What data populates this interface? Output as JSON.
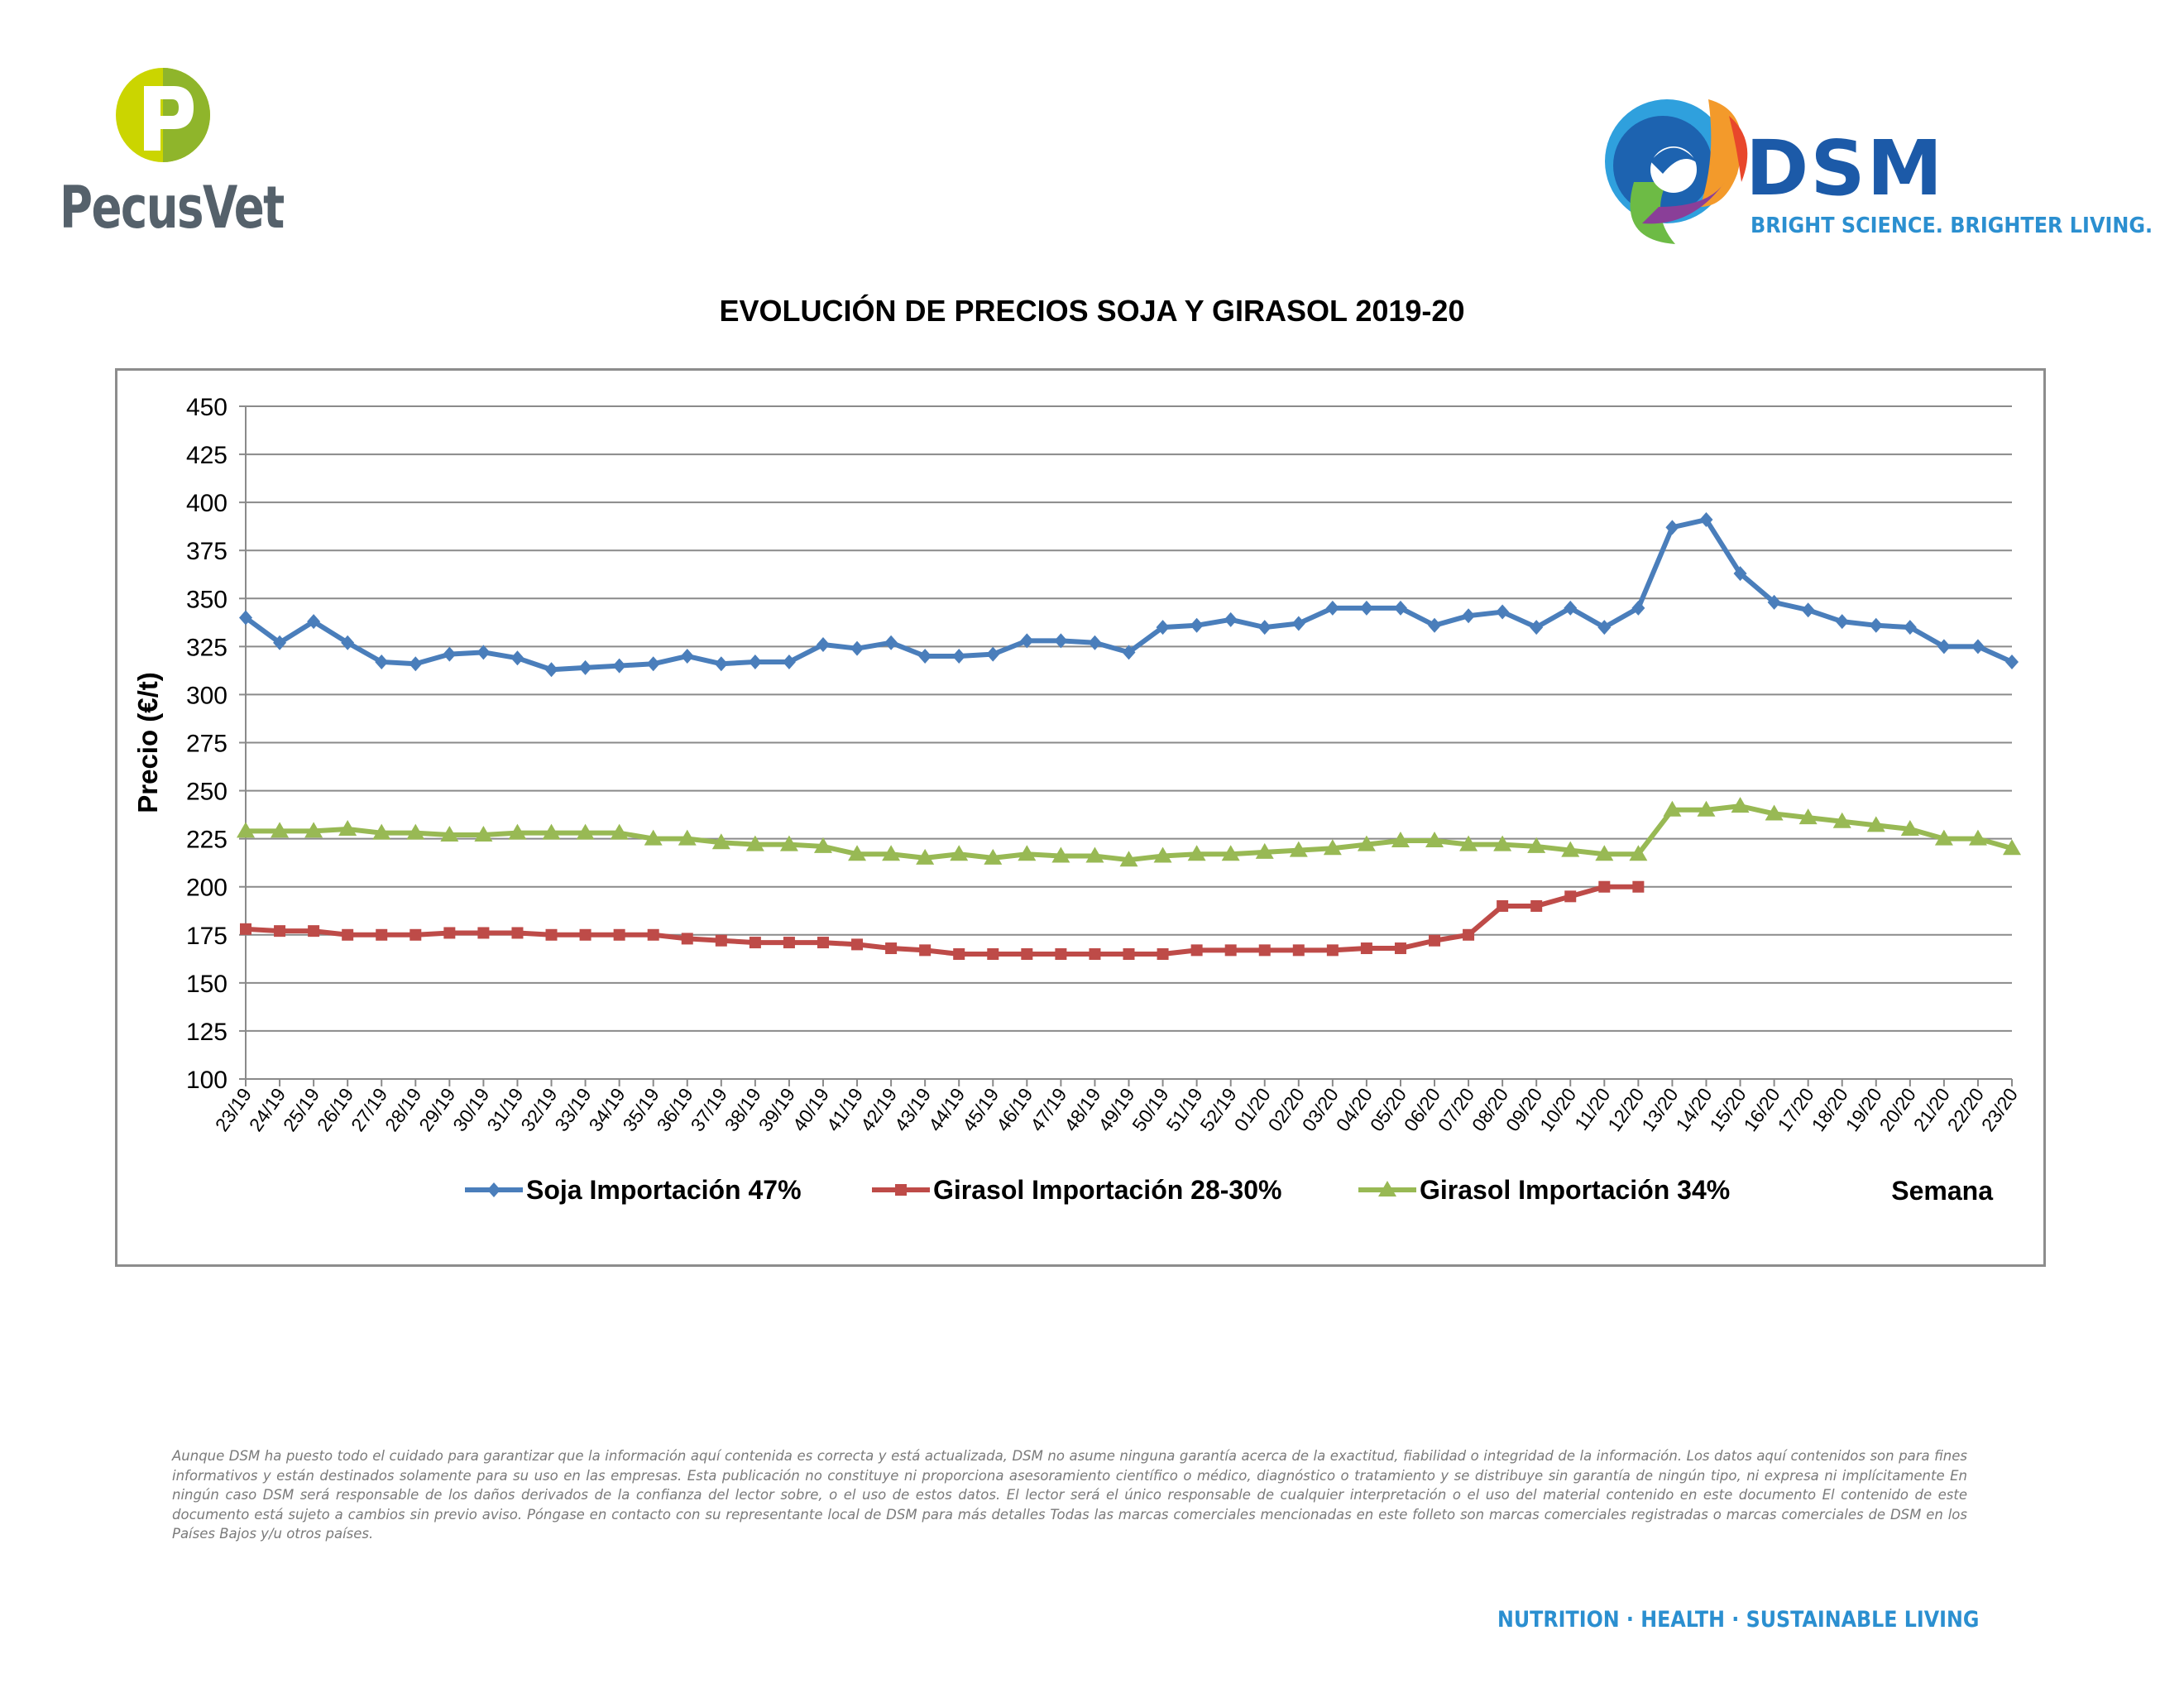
{
  "brand_left": {
    "name": "PecusVet",
    "color": "#55616b",
    "accent": "#b8cc1e"
  },
  "brand_right": {
    "name": "DSM",
    "tagline": "BRIGHT SCIENCE. BRIGHTER LIVING.",
    "color": "#1c5aa8",
    "tagline_color": "#2b8fd0"
  },
  "chart_data": {
    "type": "line",
    "title": "EVOLUCIÓN DE PRECIOS SOJA Y GIRASOL 2019-20",
    "xlabel": "Semana",
    "ylabel": "Precio (€/t)",
    "ylim": [
      100,
      450
    ],
    "yticks": [
      100,
      125,
      150,
      175,
      200,
      225,
      250,
      275,
      300,
      325,
      350,
      375,
      400,
      425,
      450
    ],
    "grid": true,
    "legend_position": "bottom",
    "categories": [
      "23/19",
      "24/19",
      "25/19",
      "26/19",
      "27/19",
      "28/19",
      "29/19",
      "30/19",
      "31/19",
      "32/19",
      "33/19",
      "34/19",
      "35/19",
      "36/19",
      "37/19",
      "38/19",
      "39/19",
      "40/19",
      "41/19",
      "42/19",
      "43/19",
      "44/19",
      "45/19",
      "46/19",
      "47/19",
      "48/19",
      "49/19",
      "50/19",
      "51/19",
      "52/19",
      "01/20",
      "02/20",
      "03/20",
      "04/20",
      "05/20",
      "06/20",
      "07/20",
      "08/20",
      "09/20",
      "10/20",
      "11/20",
      "12/20",
      "13/20",
      "14/20",
      "15/20",
      "16/20",
      "17/20",
      "18/20",
      "19/20",
      "20/20",
      "21/20",
      "22/20",
      "23/20"
    ],
    "series": [
      {
        "name": "Soja Importación 47%",
        "color": "#4a7ebb",
        "marker": "diamond",
        "values": [
          340,
          327,
          338,
          327,
          317,
          316,
          321,
          322,
          319,
          313,
          314,
          315,
          316,
          320,
          316,
          317,
          317,
          326,
          324,
          327,
          320,
          320,
          321,
          328,
          328,
          327,
          322,
          335,
          336,
          339,
          335,
          337,
          345,
          345,
          345,
          336,
          341,
          343,
          335,
          345,
          335,
          345,
          387,
          391,
          363,
          348,
          344,
          338,
          336,
          335,
          325,
          325,
          317
        ]
      },
      {
        "name": "Girasol Importación 28-30%",
        "color": "#be4b48",
        "marker": "square",
        "values": [
          178,
          177,
          177,
          175,
          175,
          175,
          176,
          176,
          176,
          175,
          175,
          175,
          175,
          173,
          172,
          171,
          171,
          171,
          170,
          168,
          167,
          165,
          165,
          165,
          165,
          165,
          165,
          165,
          167,
          167,
          167,
          167,
          167,
          168,
          168,
          172,
          175,
          190,
          190,
          195,
          200,
          200,
          null,
          null,
          null,
          null,
          null,
          null,
          null,
          null,
          null,
          null,
          null
        ]
      },
      {
        "name": "Girasol Importación 34%",
        "color": "#98b954",
        "marker": "triangle",
        "values": [
          229,
          229,
          229,
          230,
          228,
          228,
          227,
          227,
          228,
          228,
          228,
          228,
          225,
          225,
          223,
          222,
          222,
          221,
          217,
          217,
          215,
          217,
          215,
          217,
          216,
          216,
          214,
          216,
          217,
          217,
          218,
          219,
          220,
          222,
          224,
          224,
          222,
          222,
          221,
          219,
          217,
          217,
          240,
          240,
          242,
          238,
          236,
          234,
          232,
          230,
          225,
          225,
          220
        ]
      }
    ]
  },
  "disclaimer": "Aunque DSM ha puesto todo el cuidado para garantizar que la información aquí contenida es correcta y está actualizada, DSM no asume ninguna garantía acerca de la exactitud, fiabilidad o integridad de la información. Los datos aquí contenidos son para fines informativos y están destinados solamente para su uso en las empresas. Esta publicación no constituye ni proporciona asesoramiento científico o médico, diagnóstico o tratamiento y se distribuye sin garantía de ningún tipo, ni expresa ni implícitamente En ningún caso DSM será responsable de los daños derivados de la confianza del lector sobre, o el uso de estos datos. El lector será el único responsable de cualquier interpretación o el uso del material contenido en este documento El contenido de este documento está sujeto a cambios sin previo aviso. Póngase en contacto con su representante local de DSM para más detalles Todas las marcas comerciales mencionadas en este folleto son marcas comerciales registradas o marcas comerciales de DSM en los Países Bajos y/u otros países.",
  "footer_tagline": "NUTRITION · HEALTH · SUSTAINABLE LIVING"
}
